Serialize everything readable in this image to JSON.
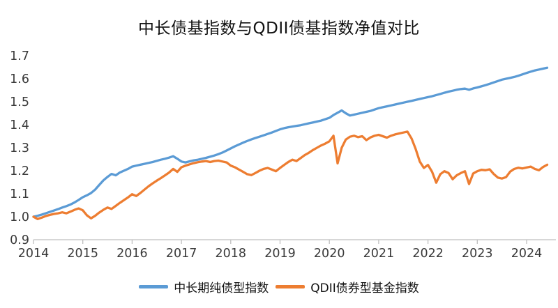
{
  "title": "中长债基指数与QDII债基指数净值对比",
  "chart_data": {
    "type": "line",
    "title": "中长债基指数与QDII债基指数净值对比",
    "xlabel": "",
    "ylabel": "",
    "grid": false,
    "legend_position": "bottom",
    "ylim": [
      0.9,
      1.7
    ],
    "yticks": [
      0.9,
      1.0,
      1.1,
      1.2,
      1.3,
      1.4,
      1.5,
      1.6,
      1.7
    ],
    "xticks": [
      2014,
      2015,
      2016,
      2017,
      2018,
      2019,
      2020,
      2021,
      2022,
      2023,
      2024
    ],
    "axis_color": "#BFBFBF",
    "tick_label_color": "#3A3A3A",
    "x": [
      2014.0,
      2014.083,
      2014.167,
      2014.25,
      2014.333,
      2014.417,
      2014.5,
      2014.583,
      2014.667,
      2014.75,
      2014.833,
      2014.917,
      2015.0,
      2015.083,
      2015.167,
      2015.25,
      2015.333,
      2015.417,
      2015.5,
      2015.583,
      2015.667,
      2015.75,
      2015.833,
      2015.917,
      2016.0,
      2016.083,
      2016.167,
      2016.25,
      2016.333,
      2016.417,
      2016.5,
      2016.583,
      2016.667,
      2016.75,
      2016.833,
      2016.917,
      2017.0,
      2017.083,
      2017.167,
      2017.25,
      2017.333,
      2017.417,
      2017.5,
      2017.583,
      2017.667,
      2017.75,
      2017.833,
      2017.917,
      2018.0,
      2018.083,
      2018.167,
      2018.25,
      2018.333,
      2018.417,
      2018.5,
      2018.583,
      2018.667,
      2018.75,
      2018.833,
      2018.917,
      2019.0,
      2019.083,
      2019.167,
      2019.25,
      2019.333,
      2019.417,
      2019.5,
      2019.583,
      2019.667,
      2019.75,
      2019.833,
      2019.917,
      2020.0,
      2020.083,
      2020.167,
      2020.25,
      2020.333,
      2020.417,
      2020.5,
      2020.583,
      2020.667,
      2020.75,
      2020.833,
      2020.917,
      2021.0,
      2021.083,
      2021.167,
      2021.25,
      2021.333,
      2021.417,
      2021.5,
      2021.583,
      2021.667,
      2021.75,
      2021.833,
      2021.917,
      2022.0,
      2022.083,
      2022.167,
      2022.25,
      2022.333,
      2022.417,
      2022.5,
      2022.583,
      2022.667,
      2022.75,
      2022.833,
      2022.917,
      2023.0,
      2023.083,
      2023.167,
      2023.25,
      2023.333,
      2023.417,
      2023.5,
      2023.583,
      2023.667,
      2023.75,
      2023.833,
      2023.917,
      2024.0,
      2024.083,
      2024.167,
      2024.25,
      2024.333,
      2024.417
    ],
    "series": [
      {
        "name": "中长期纯债型指数",
        "color": "#5B9BD5",
        "values": [
          1.0,
          1.004,
          1.009,
          1.015,
          1.021,
          1.027,
          1.033,
          1.04,
          1.046,
          1.053,
          1.062,
          1.073,
          1.085,
          1.093,
          1.103,
          1.118,
          1.138,
          1.158,
          1.173,
          1.186,
          1.18,
          1.192,
          1.2,
          1.208,
          1.218,
          1.222,
          1.226,
          1.23,
          1.234,
          1.238,
          1.243,
          1.248,
          1.252,
          1.257,
          1.263,
          1.252,
          1.24,
          1.236,
          1.241,
          1.245,
          1.248,
          1.252,
          1.256,
          1.261,
          1.266,
          1.272,
          1.279,
          1.288,
          1.297,
          1.306,
          1.314,
          1.322,
          1.329,
          1.336,
          1.342,
          1.348,
          1.354,
          1.36,
          1.366,
          1.373,
          1.38,
          1.385,
          1.389,
          1.392,
          1.395,
          1.398,
          1.402,
          1.406,
          1.41,
          1.414,
          1.418,
          1.424,
          1.43,
          1.442,
          1.452,
          1.462,
          1.45,
          1.44,
          1.444,
          1.448,
          1.452,
          1.456,
          1.46,
          1.466,
          1.472,
          1.476,
          1.48,
          1.484,
          1.488,
          1.492,
          1.496,
          1.5,
          1.504,
          1.508,
          1.512,
          1.516,
          1.52,
          1.524,
          1.529,
          1.534,
          1.539,
          1.544,
          1.548,
          1.552,
          1.555,
          1.557,
          1.552,
          1.558,
          1.562,
          1.567,
          1.572,
          1.578,
          1.584,
          1.59,
          1.596,
          1.6,
          1.604,
          1.608,
          1.613,
          1.619,
          1.625,
          1.631,
          1.636,
          1.64,
          1.644,
          1.648
        ]
      },
      {
        "name": "QDII债券型基金指数",
        "color": "#ED7D31",
        "values": [
          1.0,
          0.99,
          0.996,
          1.003,
          1.008,
          1.012,
          1.015,
          1.019,
          1.015,
          1.022,
          1.03,
          1.036,
          1.028,
          1.006,
          0.993,
          1.004,
          1.018,
          1.03,
          1.04,
          1.034,
          1.047,
          1.06,
          1.072,
          1.084,
          1.098,
          1.09,
          1.103,
          1.118,
          1.132,
          1.145,
          1.157,
          1.168,
          1.18,
          1.192,
          1.208,
          1.195,
          1.215,
          1.222,
          1.228,
          1.233,
          1.237,
          1.24,
          1.242,
          1.238,
          1.242,
          1.244,
          1.24,
          1.236,
          1.222,
          1.215,
          1.205,
          1.195,
          1.185,
          1.181,
          1.19,
          1.2,
          1.208,
          1.212,
          1.205,
          1.198,
          1.212,
          1.225,
          1.238,
          1.248,
          1.242,
          1.255,
          1.268,
          1.278,
          1.29,
          1.3,
          1.31,
          1.318,
          1.328,
          1.352,
          1.232,
          1.3,
          1.335,
          1.348,
          1.352,
          1.346,
          1.35,
          1.333,
          1.345,
          1.352,
          1.356,
          1.35,
          1.344,
          1.352,
          1.358,
          1.362,
          1.366,
          1.37,
          1.34,
          1.295,
          1.24,
          1.212,
          1.225,
          1.195,
          1.148,
          1.185,
          1.198,
          1.19,
          1.163,
          1.18,
          1.19,
          1.198,
          1.142,
          1.188,
          1.198,
          1.204,
          1.202,
          1.206,
          1.186,
          1.17,
          1.166,
          1.172,
          1.196,
          1.208,
          1.213,
          1.21,
          1.214,
          1.218,
          1.208,
          1.202,
          1.216,
          1.226
        ]
      }
    ]
  }
}
